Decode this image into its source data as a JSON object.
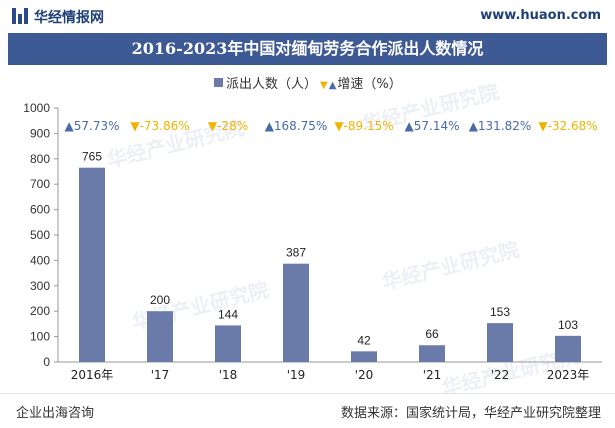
{
  "header": {
    "site_name": "华经情报网",
    "site_url": "www.huaon.com"
  },
  "title": "2016-2023年中国对缅甸劳务合作派出人数情况",
  "legend": {
    "bars_label": "派出人数（人）",
    "rate_label": "增速（%）"
  },
  "footer": {
    "left": "企业出海咨询",
    "right": "数据来源：国家统计局，华经产业研究院整理"
  },
  "watermark": {
    "line1": "华经产业研究院",
    "line2": "www.huaon.com"
  },
  "colors": {
    "bar": "#6b7ba9",
    "up": "#4a6aa8",
    "down": "#f0b400",
    "title_bg": "#3e5a95"
  },
  "chart_data": {
    "type": "bar",
    "title": "2016-2023年中国对缅甸劳务合作派出人数情况",
    "categories": [
      "2016年",
      "'17",
      "'18",
      "'19",
      "'20",
      "'21",
      "'22",
      "2023年"
    ],
    "series": [
      {
        "name": "派出人数（人）",
        "values": [
          765,
          200,
          144,
          387,
          42,
          66,
          153,
          103
        ]
      }
    ],
    "growth": {
      "name": "增速（%）",
      "labels": [
        "▲57.73%",
        "▼-73.86%",
        "▼-28%",
        "▲168.75%",
        "▼-89.15%",
        "▲57.14%",
        "▲131.82%",
        "▼-32.68%"
      ],
      "values": [
        57.73,
        -73.86,
        -28,
        168.75,
        -89.15,
        57.14,
        131.82,
        -32.68
      ]
    },
    "ylim": [
      0,
      1000
    ],
    "yticks": [
      0,
      100,
      200,
      300,
      400,
      500,
      600,
      700,
      800,
      900,
      1000
    ],
    "grid": false
  }
}
